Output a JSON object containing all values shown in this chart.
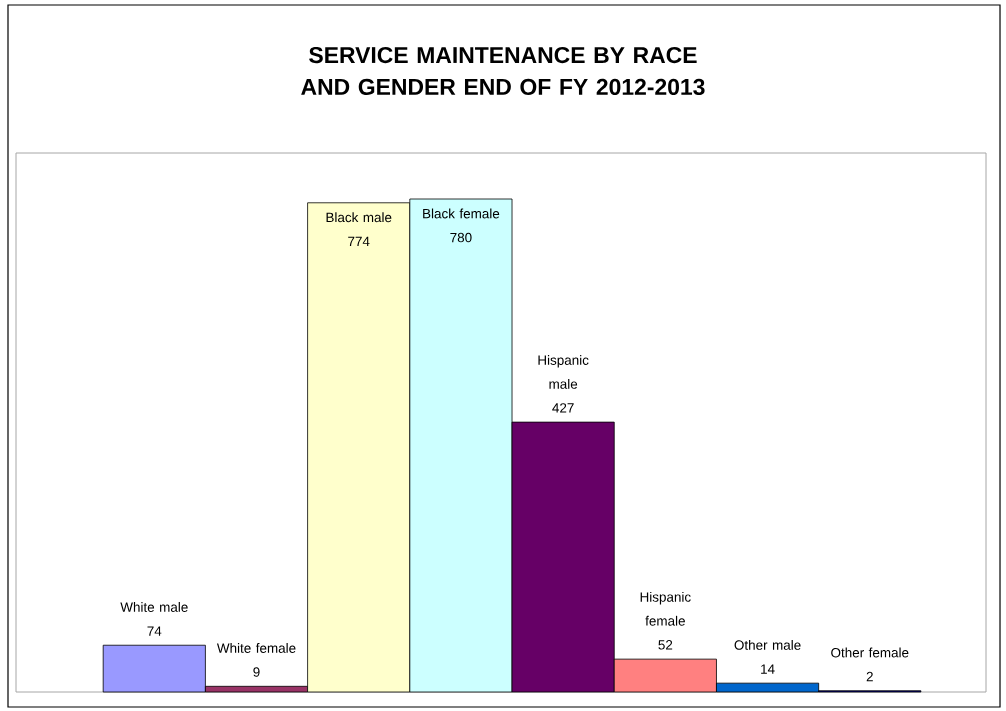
{
  "chart_data": {
    "type": "bar",
    "title": "SERVICE MAINTENANCE BY RACE AND GENDER END OF FY 2012-2013",
    "categories": [
      "White male",
      "White female",
      "Black male",
      "Black female",
      "Hispanic male",
      "Hispanic female",
      "Other male",
      "Other female"
    ],
    "values": [
      74,
      9,
      774,
      780,
      427,
      52,
      14,
      2
    ],
    "colors": [
      "#9999ff",
      "#993366",
      "#ffffcc",
      "#ccffff",
      "#660066",
      "#ff8080",
      "#0066cc",
      "#000080"
    ],
    "data_labels": true
  }
}
